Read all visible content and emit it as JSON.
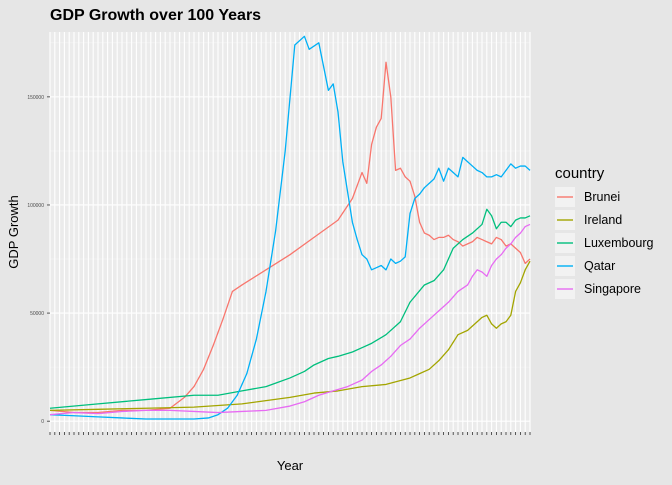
{
  "chart_data": {
    "type": "line",
    "title": "GDP Growth over 100 Years",
    "xlabel": "Year",
    "ylabel": "GDP Growth",
    "xlim": [
      1920,
      2020
    ],
    "ylim": [
      -5000,
      180000
    ],
    "yticks": [
      0,
      50000,
      100000,
      150000
    ],
    "ytick_labels": [
      "0",
      "50000",
      "100000",
      "150000"
    ],
    "grid": true,
    "legend": {
      "title": "country",
      "position": "right"
    },
    "series": [
      {
        "name": "Brunei",
        "color": "#F8766D",
        "x": [
          1920,
          1925,
          1930,
          1935,
          1940,
          1945,
          1948,
          1950,
          1952,
          1954,
          1956,
          1958,
          1960,
          1965,
          1970,
          1975,
          1980,
          1983,
          1985,
          1986,
          1987,
          1988,
          1989,
          1990,
          1991,
          1992,
          1993,
          1994,
          1995,
          1996,
          1997,
          1998,
          1999,
          2000,
          2001,
          2002,
          2003,
          2004,
          2005,
          2006,
          2007,
          2008,
          2009,
          2010,
          2011,
          2012,
          2013,
          2014,
          2015,
          2016,
          2017,
          2018,
          2019,
          2020
        ],
        "y": [
          5000,
          4000,
          4000,
          5000,
          5000,
          6000,
          11000,
          16000,
          24000,
          35000,
          47000,
          60000,
          63000,
          70000,
          77000,
          85000,
          93000,
          103000,
          115000,
          110000,
          128000,
          136000,
          140000,
          166000,
          150000,
          116000,
          117000,
          113000,
          111000,
          104000,
          92000,
          87000,
          86000,
          84000,
          85000,
          85000,
          86000,
          84000,
          83000,
          81000,
          82000,
          83000,
          85000,
          84000,
          83000,
          82000,
          85000,
          84000,
          81000,
          82000,
          80000,
          78000,
          73000,
          75000
        ]
      },
      {
        "name": "Ireland",
        "color": "#A3A500",
        "x": [
          1920,
          1930,
          1940,
          1950,
          1960,
          1965,
          1970,
          1975,
          1980,
          1985,
          1990,
          1995,
          1997,
          1999,
          2001,
          2003,
          2005,
          2007,
          2009,
          2010,
          2011,
          2012,
          2013,
          2014,
          2015,
          2016,
          2017,
          2018,
          2019,
          2020
        ],
        "y": [
          5000,
          5500,
          6000,
          6500,
          8000,
          9500,
          11000,
          13000,
          14000,
          16000,
          17000,
          20000,
          22000,
          24000,
          28000,
          33000,
          40000,
          42000,
          46000,
          48000,
          49000,
          45000,
          43000,
          45000,
          46000,
          49000,
          60000,
          64000,
          70000,
          74000
        ]
      },
      {
        "name": "Luxembourg",
        "color": "#00BF7D",
        "x": [
          1920,
          1930,
          1940,
          1950,
          1955,
          1960,
          1965,
          1970,
          1973,
          1975,
          1978,
          1980,
          1983,
          1985,
          1987,
          1990,
          1993,
          1995,
          1998,
          2000,
          2002,
          2004,
          2006,
          2008,
          2010,
          2011,
          2012,
          2013,
          2014,
          2015,
          2016,
          2017,
          2018,
          2019,
          2020
        ],
        "y": [
          6000,
          8000,
          10000,
          12000,
          12000,
          14000,
          16000,
          20000,
          23000,
          26000,
          29000,
          30000,
          32000,
          34000,
          36000,
          40000,
          46000,
          55000,
          63000,
          65000,
          70000,
          80000,
          84000,
          87000,
          91000,
          98000,
          95000,
          89000,
          92000,
          92000,
          90000,
          93000,
          94000,
          94000,
          95000
        ]
      },
      {
        "name": "Qatar",
        "color": "#00B0F6",
        "x": [
          1920,
          1925,
          1930,
          1935,
          1940,
          1945,
          1950,
          1953,
          1955,
          1957,
          1959,
          1961,
          1963,
          1965,
          1967,
          1969,
          1971,
          1973,
          1974,
          1976,
          1978,
          1979,
          1980,
          1981,
          1983,
          1984,
          1985,
          1986,
          1987,
          1988,
          1989,
          1990,
          1991,
          1992,
          1993,
          1994,
          1995,
          1996,
          1997,
          1998,
          1999,
          2000,
          2001,
          2002,
          2003,
          2004,
          2005,
          2006,
          2007,
          2008,
          2009,
          2010,
          2011,
          2012,
          2013,
          2014,
          2015,
          2016,
          2017,
          2018,
          2019,
          2020
        ],
        "y": [
          3000,
          2500,
          2000,
          1500,
          1000,
          1000,
          1000,
          1500,
          3000,
          6000,
          12000,
          22000,
          38000,
          60000,
          88000,
          125000,
          174000,
          178000,
          172000,
          175000,
          153000,
          156000,
          143000,
          120000,
          92000,
          84000,
          77000,
          75000,
          70000,
          71000,
          72000,
          70000,
          75000,
          73000,
          74000,
          76000,
          96000,
          103000,
          105000,
          108000,
          110000,
          112000,
          117000,
          111000,
          117000,
          115000,
          113000,
          122000,
          120000,
          118000,
          116000,
          115000,
          113000,
          113000,
          114000,
          113000,
          116000,
          119000,
          117000,
          118000,
          118000,
          116000
        ]
      },
      {
        "name": "Singapore",
        "color": "#E76BF3",
        "x": [
          1920,
          1925,
          1930,
          1935,
          1940,
          1945,
          1950,
          1955,
          1960,
          1965,
          1970,
          1973,
          1976,
          1979,
          1982,
          1985,
          1987,
          1989,
          1991,
          1993,
          1995,
          1997,
          1999,
          2001,
          2003,
          2005,
          2007,
          2008,
          2009,
          2010,
          2011,
          2012,
          2013,
          2014,
          2015,
          2016,
          2017,
          2018,
          2019,
          2020
        ],
        "y": [
          3000,
          4000,
          3500,
          4500,
          5000,
          5000,
          4500,
          4000,
          4500,
          5000,
          7000,
          9000,
          12000,
          14000,
          16000,
          19000,
          23000,
          26000,
          30000,
          35000,
          38000,
          43000,
          47000,
          51000,
          55000,
          60000,
          63000,
          67000,
          70000,
          69000,
          67000,
          72000,
          75000,
          77000,
          80000,
          82000,
          85000,
          87000,
          90000,
          91000
        ]
      }
    ]
  }
}
